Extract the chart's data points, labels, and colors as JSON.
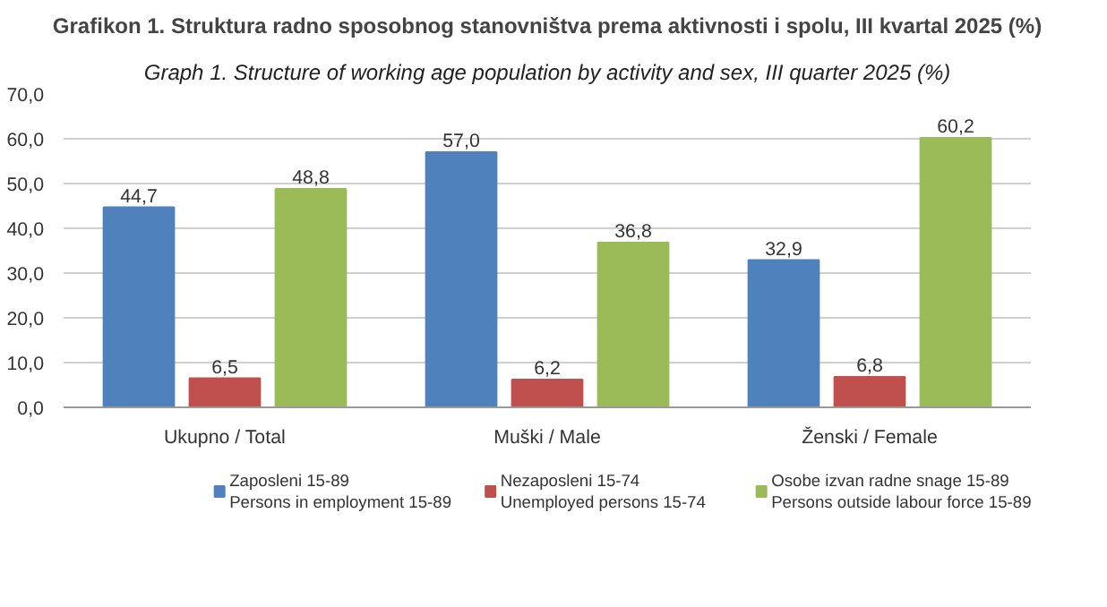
{
  "chart_data": {
    "type": "bar",
    "title": "Grafikon 1. Struktura radno sposobnog stanovništva prema aktivnosti i spolu, III kvartal 2025 (%)",
    "subtitle": "Graph 1. Structure of working age population by activity and sex, III quarter 2025 (%)",
    "categories": [
      "Ukupno / Total",
      "Muški / Male",
      "Ženski / Female"
    ],
    "series": [
      {
        "name": "Zaposleni 15-89\nPersons in employment 15-89",
        "color": "#4f81bd",
        "values": [
          44.7,
          57.0,
          32.9
        ],
        "value_labels": [
          "44,7",
          "57,0",
          "32,9"
        ]
      },
      {
        "name": "Nezaposleni 15-74\nUnemployed persons 15-74",
        "color": "#c0504d",
        "values": [
          6.5,
          6.2,
          6.8
        ],
        "value_labels": [
          "6,5",
          "6,2",
          "6,8"
        ]
      },
      {
        "name": "Osobe izvan radne snage 15-89\nPersons outside labour force 15-89",
        "color": "#9bbb59",
        "values": [
          48.8,
          36.8,
          60.2
        ],
        "value_labels": [
          "48,8",
          "36,8",
          "60,2"
        ]
      }
    ],
    "ylim": [
      0,
      70
    ],
    "yticks": [
      {
        "value": 0,
        "label": "0,0"
      },
      {
        "value": 10,
        "label": "10,0"
      },
      {
        "value": 20,
        "label": "20,0"
      },
      {
        "value": 30,
        "label": "30,0"
      },
      {
        "value": 40,
        "label": "40,0"
      },
      {
        "value": 50,
        "label": "50,0"
      },
      {
        "value": 60,
        "label": "60,0"
      },
      {
        "value": 70,
        "label": "70,0"
      }
    ],
    "grid": "y",
    "legend": "bottom"
  }
}
